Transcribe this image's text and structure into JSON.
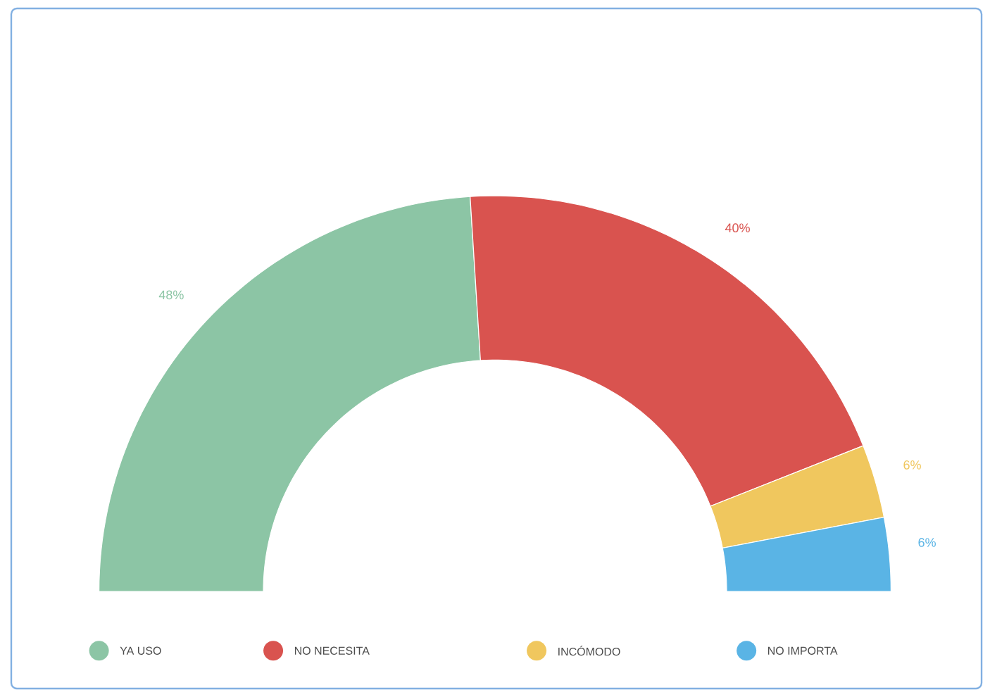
{
  "chart_data": {
    "type": "donut",
    "categories": [
      "YA USO",
      "NO NECESITA",
      "INCÓMODO",
      "NO IMPORTA"
    ],
    "values": [
      48,
      40,
      6,
      6
    ],
    "colors": [
      "#8cc5a5",
      "#d9534f",
      "#f0c75e",
      "#5ab4e5"
    ],
    "value_labels": [
      "48%",
      "40%",
      "6%",
      "6%"
    ],
    "legend": "bottom"
  }
}
